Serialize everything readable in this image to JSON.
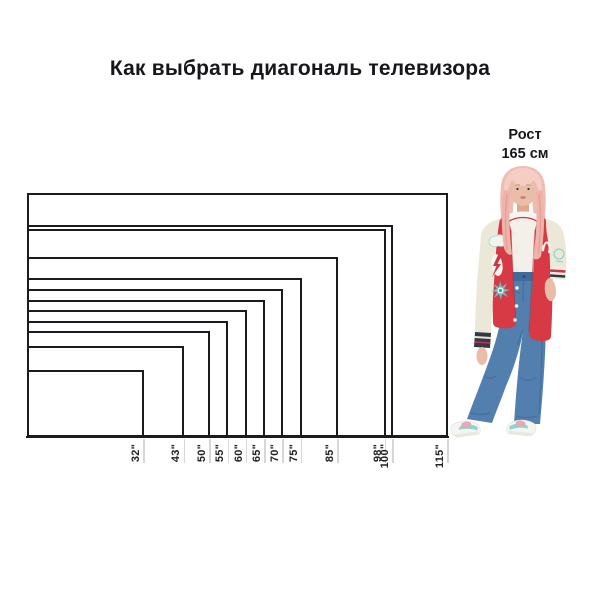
{
  "title": "Как выбрать диагональ телевизора",
  "person": {
    "label_line1": "Рост",
    "label_line2": "165 см"
  },
  "chart_data": {
    "type": "nested-rectangles",
    "title": "Как выбрать диагональ телевизора",
    "aspect_ratio": "16:9",
    "anchor": "shared bottom-left corner",
    "diagonals_in": [
      32,
      43,
      50,
      55,
      60,
      65,
      70,
      75,
      85,
      98,
      100,
      115
    ],
    "tick_labels": [
      "32\"",
      "43\"",
      "50\"",
      "55\"",
      "60\"",
      "65\"",
      "70\"",
      "75\"",
      "85\"",
      "98\"",
      "100\"",
      "115\""
    ],
    "reference_person": {
      "label": "Рост 165 см",
      "height_cm": 165
    }
  },
  "colors": {
    "text": "#17171b",
    "outline": "#1b1b1f",
    "tick_grey": "#d7d7d7",
    "jacket_red": "#d83a45",
    "jacket_red_shadow": "#b32836",
    "sleeve_cream": "#ece8d8",
    "cuff_dark": "#333947",
    "denim_blue": "#527fae",
    "denim_dark": "#3f6a9a",
    "denim_band": "#3f6a9a",
    "hair_pink": "#efbcb3",
    "hair_light": "#f4cdc4",
    "hair_strand": "#eeb4aa",
    "skin": "#e9bda7",
    "skin_shade": "#dfa78f",
    "mint": "#8fd4cb",
    "teal_patch": "#5fc8c5",
    "patch_white": "#f4f4ef",
    "tank_white": "#f3f0e9"
  }
}
